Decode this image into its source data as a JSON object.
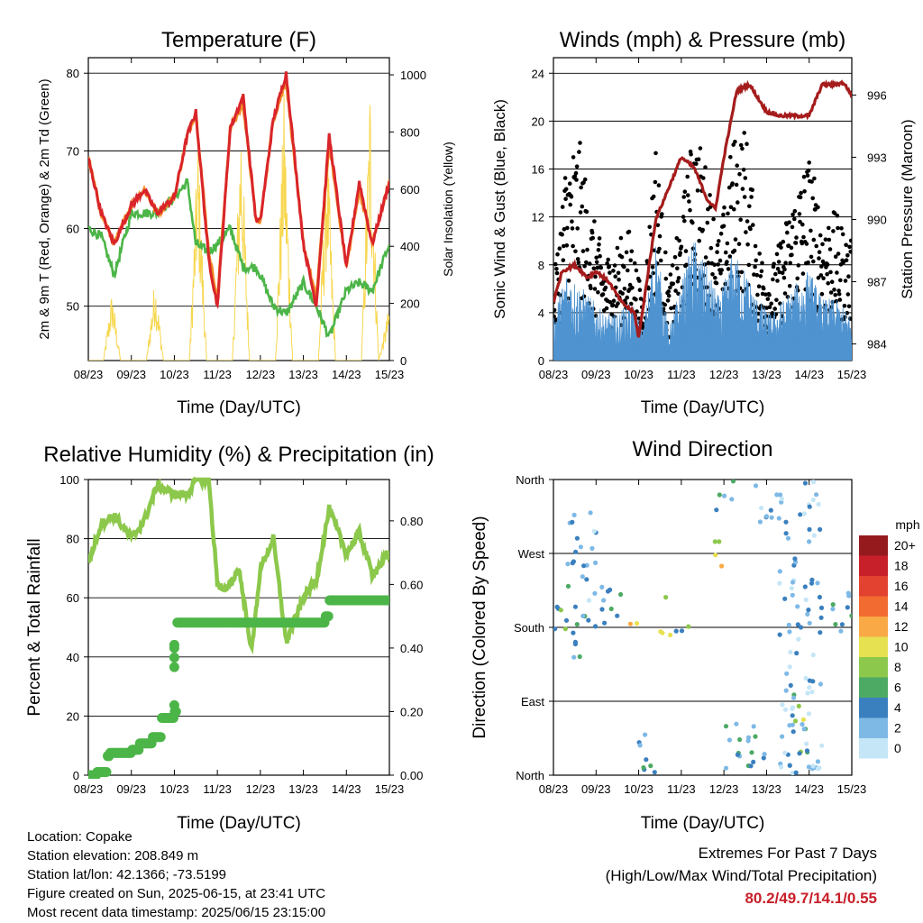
{
  "xticks": [
    "08/23",
    "09/23",
    "10/23",
    "11/23",
    "12/23",
    "13/23",
    "14/23",
    "15/23"
  ],
  "colors": {
    "temp2m": "#d9252a",
    "temp9m": "#f28c28",
    "dewpoint": "#4cb548",
    "solar": "#f7d750",
    "wind": "#4f93d0",
    "gust": "#000000",
    "pressure": "#a51c1c",
    "rh": "#8cc84b",
    "precip": "#4cb548",
    "extremes": "#c8202a"
  },
  "chart_data": [
    {
      "id": "temperature",
      "type": "line",
      "title": "Temperature (F)",
      "xlabel": "Time (Day/UTC)",
      "ylabel": "2m & 9m T (Red, Orange) & 2m Td (Green)",
      "y2label": "Solar Insolation (Yellow)",
      "ylim": [
        43,
        82
      ],
      "yticks": [
        50,
        60,
        70,
        80
      ],
      "y2lim": [
        0,
        1060
      ],
      "y2ticks": [
        0,
        200,
        400,
        600,
        800,
        1000
      ],
      "grid": true,
      "series": [
        {
          "key": "temp2m",
          "x": [
            0,
            0.3,
            0.6,
            1.0,
            1.3,
            1.6,
            2.0,
            2.3,
            2.5,
            2.8,
            3.0,
            3.3,
            3.6,
            3.9,
            4.0,
            4.3,
            4.6,
            5.0,
            5.3,
            5.6,
            6.0,
            6.3,
            6.6,
            7.0
          ],
          "values": [
            69,
            62,
            58,
            63,
            65,
            62,
            64,
            72,
            75,
            56,
            50,
            73,
            77,
            61,
            61,
            74,
            80,
            58,
            50,
            72,
            55,
            66,
            58,
            66
          ]
        },
        {
          "key": "temp9m",
          "x": [
            0,
            0.3,
            0.6,
            1.0,
            1.3,
            1.6,
            2.0,
            2.3,
            2.5,
            2.8,
            3.0,
            3.3,
            3.6,
            3.9,
            4.0,
            4.3,
            4.6,
            5.0,
            5.3,
            5.6,
            6.0,
            6.3,
            6.6,
            7.0
          ],
          "values": [
            69,
            62,
            58,
            63,
            65,
            62,
            64,
            72,
            75,
            57,
            51,
            73,
            76,
            61,
            61,
            74,
            79,
            58,
            51,
            71,
            55,
            65,
            58,
            66
          ]
        },
        {
          "key": "dewpoint",
          "x": [
            0,
            0.3,
            0.6,
            1.0,
            1.3,
            1.6,
            2.0,
            2.3,
            2.5,
            2.8,
            3.0,
            3.3,
            3.6,
            3.9,
            4.0,
            4.3,
            4.6,
            5.0,
            5.3,
            5.6,
            6.0,
            6.3,
            6.6,
            7.0
          ],
          "values": [
            60,
            59,
            54,
            62,
            62,
            62,
            64,
            66,
            58,
            57,
            58,
            60,
            55,
            55,
            54,
            50,
            49,
            53,
            50,
            46,
            52,
            53,
            52,
            58
          ]
        },
        {
          "key": "solar",
          "axis": "y2",
          "x": [
            0,
            0.35,
            0.55,
            0.75,
            1.0,
            1.35,
            1.55,
            1.75,
            2.0,
            2.35,
            2.55,
            2.75,
            3.0,
            3.35,
            3.55,
            3.75,
            4.0,
            4.35,
            4.55,
            4.75,
            5.0,
            5.35,
            5.55,
            5.75,
            6.0,
            6.35,
            6.55,
            6.75,
            7.0
          ],
          "values": [
            0,
            0,
            250,
            0,
            0,
            0,
            300,
            0,
            0,
            0,
            800,
            0,
            0,
            0,
            900,
            0,
            0,
            0,
            950,
            0,
            0,
            0,
            820,
            0,
            0,
            0,
            1000,
            0,
            200
          ]
        }
      ]
    },
    {
      "id": "winds",
      "type": "scatter",
      "title": "Winds (mph) & Pressure (mb)",
      "xlabel": "Time (Day/UTC)",
      "ylabel": "Sonic Wind & Gust (Blue, Black)",
      "y2label": "Station Pressure (Maroon)",
      "ylim": [
        0,
        25.3
      ],
      "yticks": [
        0,
        4,
        8,
        12,
        16,
        20,
        24
      ],
      "y2lim": [
        983.2,
        997.8
      ],
      "y2ticks": [
        984,
        987,
        990,
        993,
        996
      ],
      "grid": true,
      "series": [
        {
          "key": "gust",
          "x": [
            0,
            0.3,
            0.6,
            0.9,
            1.2,
            1.5,
            1.8,
            2.1,
            2.4,
            2.7,
            3.0,
            3.3,
            3.6,
            3.9,
            4.2,
            4.5,
            4.8,
            5.1,
            5.4,
            5.7,
            6.0,
            6.3,
            6.6,
            7.0
          ],
          "values": [
            5,
            14,
            15,
            10,
            7,
            8,
            9,
            4,
            15,
            5,
            10,
            16,
            13,
            8,
            15,
            16,
            8,
            6,
            9,
            12,
            14,
            10,
            10,
            8
          ]
        },
        {
          "key": "wind",
          "x": [
            0,
            0.3,
            0.6,
            0.9,
            1.2,
            1.5,
            1.8,
            2.1,
            2.4,
            2.7,
            3.0,
            3.3,
            3.6,
            3.9,
            4.2,
            4.5,
            4.8,
            5.1,
            5.4,
            5.7,
            6.0,
            6.3,
            6.6,
            7.0
          ],
          "values": [
            3,
            6,
            5,
            4,
            3,
            3,
            4,
            2,
            8,
            2,
            5,
            8,
            6,
            4,
            7,
            6,
            4,
            3,
            4,
            5,
            6,
            4,
            4,
            3
          ]
        },
        {
          "key": "pressure",
          "axis": "y2",
          "x": [
            0,
            0.2,
            0.5,
            0.8,
            1.0,
            1.3,
            1.6,
            1.9,
            2.0,
            2.4,
            2.8,
            3.0,
            3.3,
            3.6,
            3.8,
            4.0,
            4.3,
            4.6,
            5.0,
            5.3,
            5.6,
            6.0,
            6.3,
            6.6,
            6.8,
            7.0
          ],
          "values": [
            986,
            987.5,
            987.8,
            987.2,
            987.5,
            987,
            986,
            985.5,
            984.3,
            990,
            992,
            993,
            992.5,
            991,
            990.5,
            993,
            996.2,
            996.5,
            995.2,
            995,
            995,
            995,
            996.5,
            996.5,
            996.6,
            996
          ]
        }
      ]
    },
    {
      "id": "humidity",
      "type": "line",
      "title": "Relative Humidity (%) & Precipitation (in)",
      "xlabel": "Time (Day/UTC)",
      "ylabel": "Percent & Total Rainfall",
      "ylim": [
        0,
        100
      ],
      "yticks": [
        0,
        20,
        40,
        60,
        80,
        100
      ],
      "y2lim": [
        0,
        0.93
      ],
      "y2ticks": [
        "0.00",
        "0.20",
        "0.40",
        "0.60",
        "0.80"
      ],
      "grid": true,
      "series": [
        {
          "key": "rh",
          "x": [
            0,
            0.3,
            0.6,
            1.0,
            1.3,
            1.6,
            2.0,
            2.3,
            2.5,
            2.8,
            3.0,
            3.2,
            3.5,
            3.8,
            4.0,
            4.3,
            4.6,
            5.0,
            5.3,
            5.6,
            6.0,
            6.3,
            6.6,
            7.0
          ],
          "values": [
            72,
            85,
            88,
            80,
            86,
            98,
            95,
            95,
            100,
            100,
            65,
            62,
            70,
            42,
            70,
            80,
            45,
            60,
            66,
            90,
            75,
            82,
            68,
            75
          ]
        },
        {
          "key": "precip",
          "axis": "y2",
          "x": [
            0,
            0.2,
            0.45,
            0.5,
            1.0,
            1.2,
            1.5,
            1.7,
            2.0,
            2.05,
            3.0,
            4.0,
            5.0,
            5.5,
            5.6,
            6.0,
            7.0
          ],
          "values": [
            0,
            0.01,
            0.06,
            0.07,
            0.08,
            0.1,
            0.12,
            0.18,
            0.2,
            0.48,
            0.48,
            0.48,
            0.48,
            0.5,
            0.55,
            0.55,
            0.55
          ]
        }
      ]
    },
    {
      "id": "direction",
      "type": "scatter",
      "title": "Wind Direction",
      "xlabel": "Time (Day/UTC)",
      "ylabel": "Direction (Colored By Speed)",
      "ylim": [
        0,
        360
      ],
      "yticks": [
        "North",
        "East",
        "South",
        "West",
        "North"
      ],
      "grid": true,
      "colorbar": {
        "title": "mph",
        "labels": [
          "20+",
          "18",
          "16",
          "14",
          "12",
          "10",
          "8",
          "6",
          "4",
          "2",
          "0"
        ],
        "colors": [
          "#951a1d",
          "#c8202a",
          "#e2422f",
          "#f26b30",
          "#f9a945",
          "#e6e151",
          "#8cc84b",
          "#4daa64",
          "#3b80be",
          "#7eb9e6",
          "#c4e6f7"
        ]
      },
      "clusters": [
        {
          "x0": 0,
          "x1": 0.7,
          "d0": 140,
          "d1": 210,
          "speed": 5
        },
        {
          "x0": 0.3,
          "x1": 1.0,
          "d0": 190,
          "d1": 320,
          "speed": 3
        },
        {
          "x0": 0.8,
          "x1": 1.6,
          "d0": 170,
          "d1": 230,
          "speed": 4
        },
        {
          "x0": 1.7,
          "x1": 2.0,
          "d0": 180,
          "d1": 210,
          "speed": 10
        },
        {
          "x0": 1.9,
          "x1": 2.4,
          "d0": 0,
          "d1": 60,
          "speed": 3
        },
        {
          "x0": 2.5,
          "x1": 2.8,
          "d0": 170,
          "d1": 220,
          "speed": 10
        },
        {
          "x0": 2.8,
          "x1": 3.2,
          "d0": 170,
          "d1": 200,
          "speed": 5
        },
        {
          "x0": 3.7,
          "x1": 4.0,
          "d0": 250,
          "d1": 300,
          "speed": 10
        },
        {
          "x0": 3.8,
          "x1": 4.3,
          "d0": 320,
          "d1": 360,
          "speed": 3
        },
        {
          "x0": 4.0,
          "x1": 5.0,
          "d0": 0,
          "d1": 70,
          "speed": 4
        },
        {
          "x0": 4.7,
          "x1": 5.5,
          "d0": 300,
          "d1": 360,
          "speed": 3
        },
        {
          "x0": 5.6,
          "x1": 6.0,
          "d0": 20,
          "d1": 100,
          "speed": 7
        },
        {
          "x0": 5.3,
          "x1": 6.3,
          "d0": 0,
          "d1": 360,
          "speed": 2
        },
        {
          "x0": 6.5,
          "x1": 7.0,
          "d0": 170,
          "d1": 240,
          "speed": 4
        }
      ]
    }
  ],
  "info": {
    "location": "Location: Copake",
    "elevation": "Station elevation: 208.849 m",
    "latlon": "Station lat/lon: 42.1366; -73.5199",
    "created": "Figure created on Sun, 2025-06-15, at 23:41 UTC",
    "recent": "Most recent data timestamp: 2025/06/15 23:15:00"
  },
  "extremes": {
    "title": "Extremes For Past 7 Days",
    "subtitle": "(High/Low/Max Wind/Total Precipitation)",
    "values": "80.2/49.7/14.1/0.55"
  }
}
